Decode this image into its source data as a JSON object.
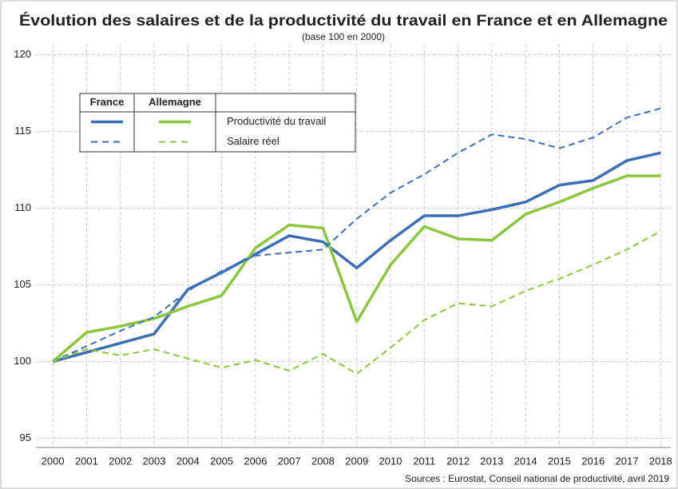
{
  "chart_data": {
    "type": "line",
    "title": "Évolution des salaires et de la productivité du travail en France et en Allemagne",
    "subtitle": "(base 100 en 2000)",
    "source": "Sources : Eurostat, Conseil national de productivité, avril 2019",
    "legend_columns": [
      "France",
      "Allemagne"
    ],
    "legend_rows": [
      "Productivité du travail",
      "Salaire réel"
    ],
    "x": [
      2000,
      2001,
      2002,
      2003,
      2004,
      2005,
      2006,
      2007,
      2008,
      2009,
      2010,
      2011,
      2012,
      2013,
      2014,
      2015,
      2016,
      2017,
      2018
    ],
    "series": [
      {
        "column": 0,
        "row": 0,
        "color": "#3d6fb6",
        "dashed": false,
        "values": [
          100,
          100.6,
          101.2,
          101.8,
          104.7,
          105.8,
          107.0,
          108.2,
          107.8,
          106.1,
          107.9,
          109.5,
          109.5,
          109.9,
          110.4,
          111.5,
          111.8,
          113.1,
          113.6
        ]
      },
      {
        "column": 1,
        "row": 0,
        "color": "#8cc63f",
        "dashed": false,
        "values": [
          100,
          101.9,
          102.3,
          102.8,
          103.6,
          104.3,
          107.4,
          108.9,
          108.7,
          102.6,
          106.3,
          108.8,
          108.0,
          107.9,
          109.6,
          110.4,
          111.3,
          112.1,
          112.1
        ]
      },
      {
        "column": 0,
        "row": 1,
        "color": "#3d6fb6",
        "dashed": true,
        "values": [
          100,
          101.0,
          102.0,
          102.9,
          104.6,
          105.9,
          106.9,
          107.1,
          107.3,
          109.3,
          111.0,
          112.2,
          113.6,
          114.8,
          114.5,
          113.9,
          114.6,
          115.9,
          116.5
        ]
      },
      {
        "column": 1,
        "row": 1,
        "color": "#8cc63f",
        "dashed": true,
        "values": [
          100,
          100.8,
          100.4,
          100.8,
          100.2,
          99.6,
          100.1,
          99.4,
          100.5,
          99.2,
          100.9,
          102.7,
          103.8,
          103.6,
          104.6,
          105.4,
          106.3,
          107.3,
          108.5
        ]
      }
    ],
    "xlim": [
      1999.5,
      2018.3
    ],
    "xticks": [
      2000,
      2001,
      2002,
      2003,
      2004,
      2005,
      2006,
      2007,
      2008,
      2009,
      2010,
      2011,
      2012,
      2013,
      2014,
      2015,
      2016,
      2017,
      2018
    ],
    "ylim": [
      94.4,
      120.7
    ],
    "yticks": [
      95,
      100,
      105,
      110,
      115,
      120
    ],
    "grid": true
  }
}
